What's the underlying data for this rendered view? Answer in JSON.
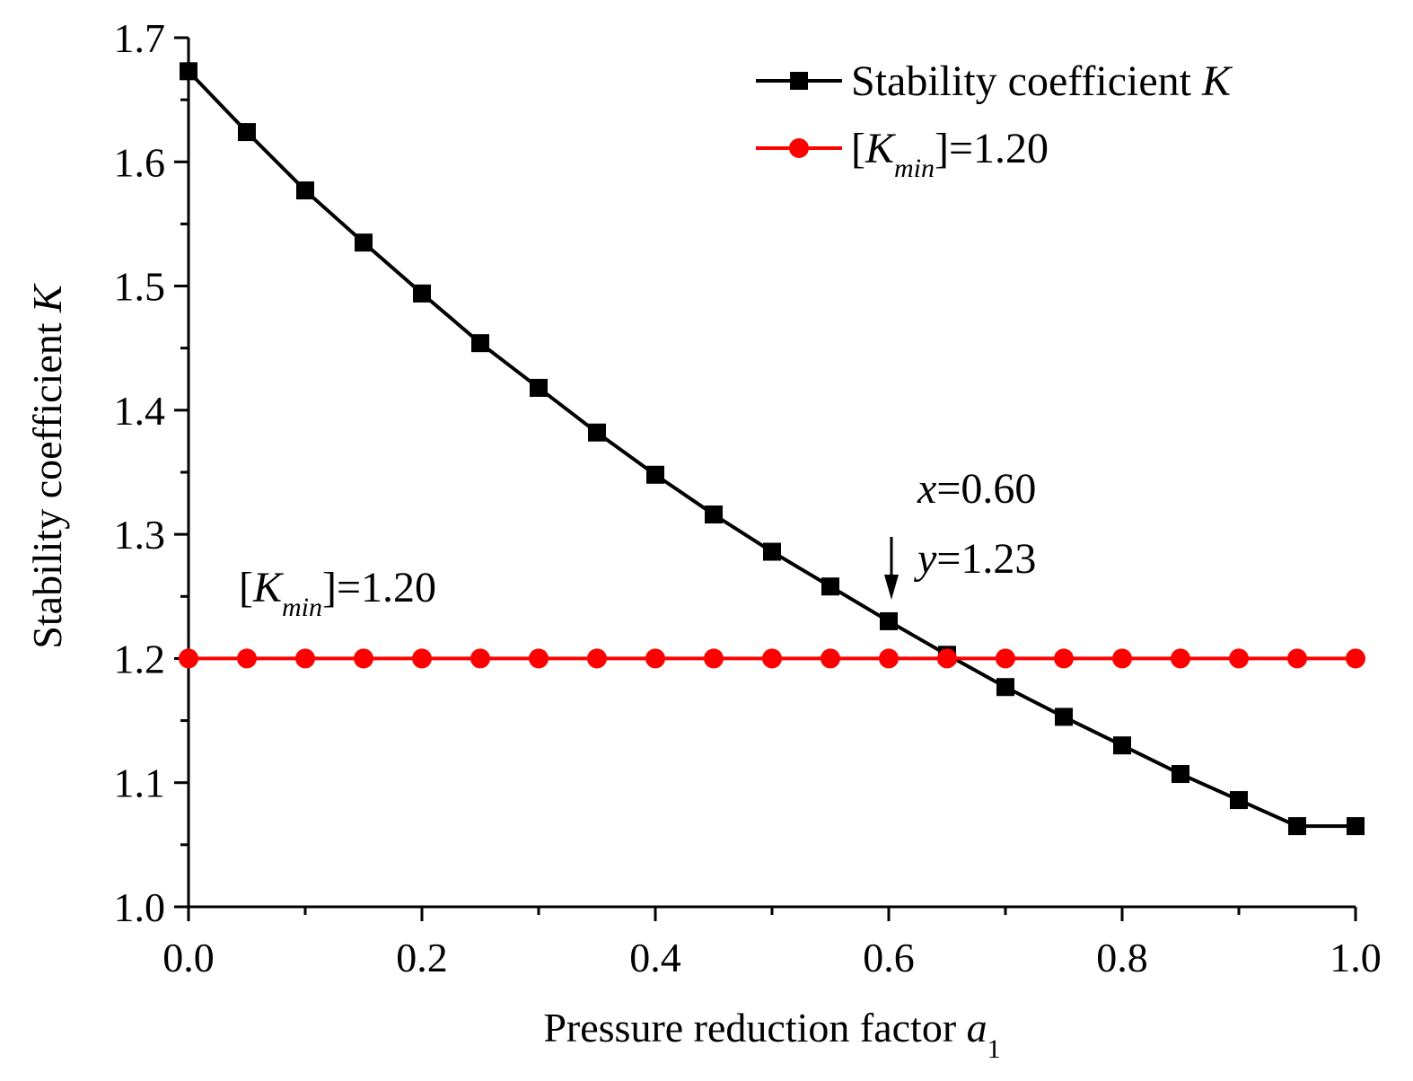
{
  "chart_data": {
    "type": "line",
    "title": "",
    "xlabel": {
      "text": "Pressure reduction factor ",
      "var": "a",
      "sub": "1"
    },
    "ylabel": {
      "text": "Stability coefficient ",
      "var": "K"
    },
    "xlim": [
      0.0,
      1.0
    ],
    "ylim": [
      1.0,
      1.7
    ],
    "x_ticks": [
      "0.0",
      "0.2",
      "0.4",
      "0.6",
      "0.8",
      "1.0"
    ],
    "x_tick_values": [
      0.0,
      0.2,
      0.4,
      0.6,
      0.8,
      1.0
    ],
    "y_ticks": [
      "1.0",
      "1.1",
      "1.2",
      "1.3",
      "1.4",
      "1.5",
      "1.6",
      "1.7"
    ],
    "y_tick_values": [
      1.0,
      1.1,
      1.2,
      1.3,
      1.4,
      1.5,
      1.6,
      1.7
    ],
    "grid": false,
    "legend_position": "top-right",
    "x": [
      0.0,
      0.05,
      0.1,
      0.15,
      0.2,
      0.25,
      0.3,
      0.35,
      0.4,
      0.45,
      0.5,
      0.55,
      0.6,
      0.65,
      0.7,
      0.75,
      0.8,
      0.85,
      0.9,
      0.95,
      1.0
    ],
    "series": [
      {
        "name": "Stability coefficient K",
        "legend_text": "Stability coefficient ",
        "legend_var": "K",
        "color": "#000000",
        "marker": "square",
        "values": [
          1.673,
          1.624,
          1.577,
          1.535,
          1.494,
          1.454,
          1.418,
          1.382,
          1.348,
          1.316,
          1.286,
          1.258,
          1.23,
          1.203,
          1.177,
          1.153,
          1.13,
          1.107,
          1.086,
          1.065,
          1.065
        ]
      },
      {
        "name": "[Kmin]=1.20",
        "legend_text": "[",
        "legend_var": "K",
        "legend_sub": "min",
        "legend_tail": "]=1.20",
        "color": "#ff0000",
        "marker": "circle",
        "values": [
          1.2,
          1.2,
          1.2,
          1.2,
          1.2,
          1.2,
          1.2,
          1.2,
          1.2,
          1.2,
          1.2,
          1.2,
          1.2,
          1.2,
          1.2,
          1.2,
          1.2,
          1.2,
          1.2,
          1.2,
          1.2
        ]
      }
    ],
    "annotations": {
      "kmin_label": {
        "open": "[",
        "var": "K",
        "sub": "min",
        "tail": "]=1.20"
      },
      "point": {
        "x_var": "x",
        "x_text": "=0.60",
        "y_var": "y",
        "y_text": "=1.23",
        "at_x": 0.6,
        "at_y": 1.23
      }
    }
  }
}
